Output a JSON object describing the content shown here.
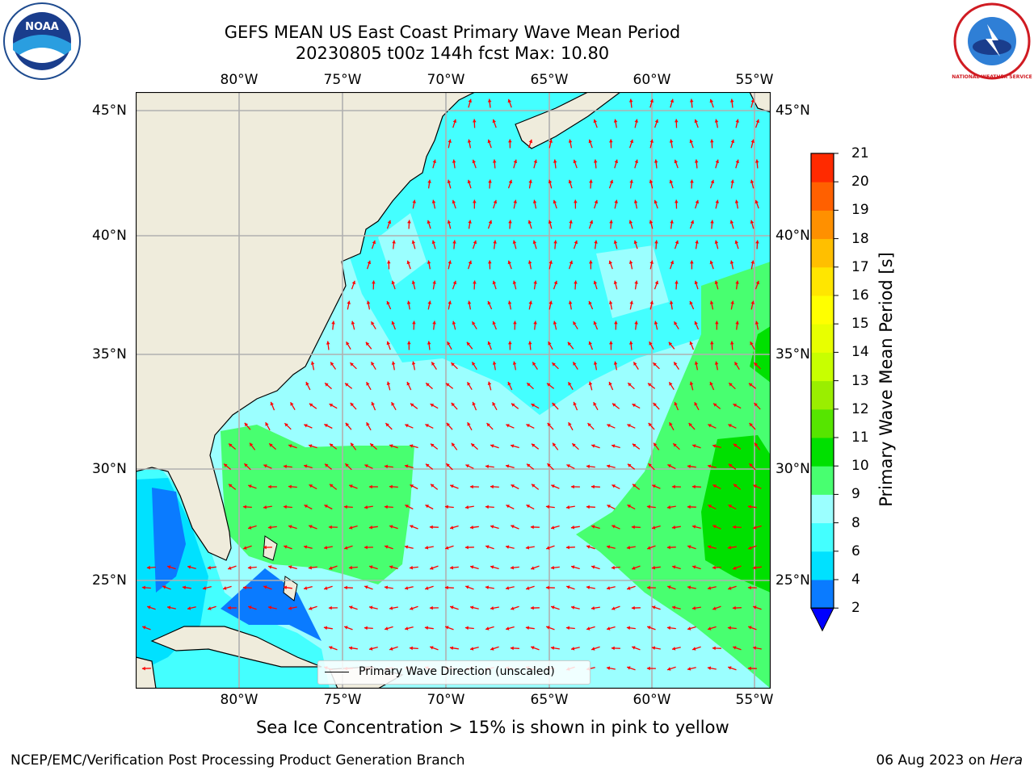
{
  "header": {
    "title_line1": "GEFS MEAN US East Coast Primary Wave Mean Period",
    "title_line2": "20230805 t00z 144h fcst   Max: 10.80"
  },
  "logos": {
    "left": "NOAA",
    "right": "NATIONAL WEATHER SERVICE"
  },
  "map": {
    "lon_labels": [
      "80°W",
      "75°W",
      "70°W",
      "65°W",
      "60°W",
      "55°W"
    ],
    "lat_labels": [
      "45°N",
      "40°N",
      "35°N",
      "30°N",
      "25°N"
    ],
    "lon_values": [
      -80,
      -75,
      -70,
      -65,
      -60,
      -55
    ],
    "lat_values": [
      45,
      40,
      35,
      30,
      25
    ],
    "lon_range": [
      -85,
      -54.3
    ],
    "lat_range": [
      20,
      45.8
    ],
    "land_color": "#efecdc",
    "grid_color": "#b0b0b0",
    "arrow_color": "#ff0000"
  },
  "legend": {
    "label": "Primary Wave Direction (unscaled)"
  },
  "colorbar": {
    "label": "Primary Wave Mean Period [s]",
    "ticks": [
      "2",
      "4",
      "6",
      "8",
      "9",
      "10",
      "11",
      "12",
      "13",
      "14",
      "15",
      "16",
      "17",
      "18",
      "19",
      "20",
      "21"
    ],
    "colors": [
      "#0a7bff",
      "#00e1ff",
      "#44ffff",
      "#9bffff",
      "#48ff70",
      "#00e000",
      "#56e500",
      "#9aee00",
      "#c8ff00",
      "#e8ff00",
      "#ffff00",
      "#ffe600",
      "#ffbf00",
      "#ff9000",
      "#ff6000",
      "#ff2a00"
    ],
    "underflow_color": "#0000ff",
    "top_color": "#ff0000"
  },
  "notes": {
    "sea_ice": "Sea Ice Concentration > 15% is shown in pink to yellow"
  },
  "footer": {
    "left": "NCEP/EMC/Verification Post Processing Product Generation Branch",
    "right_date": "06 Aug 2023 on ",
    "right_machine": "Hera"
  }
}
